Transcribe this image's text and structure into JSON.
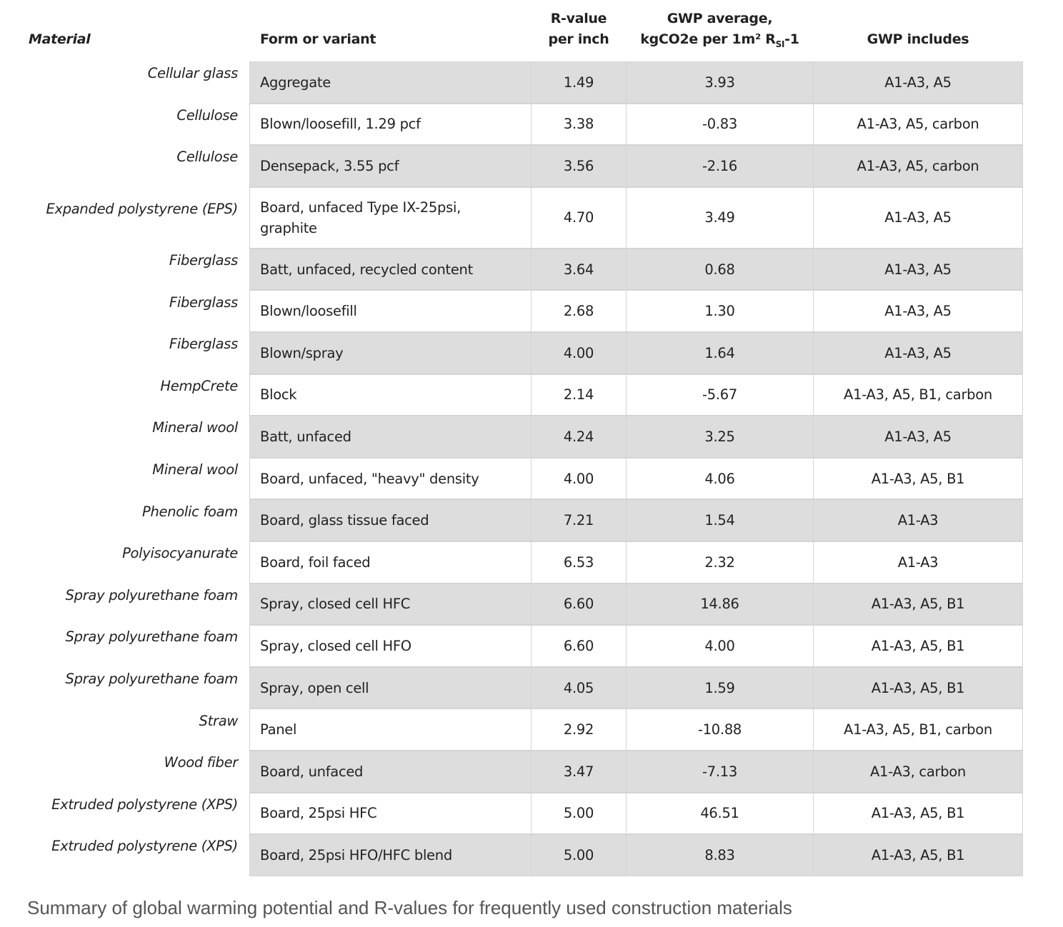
{
  "table": {
    "headers": {
      "material": "Material",
      "form": "Form or variant",
      "rvalue": [
        "R-value",
        "per inch"
      ],
      "gwp": [
        "GWP average,",
        "kgCO2e per 1m² R",
        "SI",
        "-1"
      ],
      "includes": "GWP includes"
    },
    "rows": [
      [
        "Cellular glass",
        "Aggregate",
        "1.49",
        "3.93",
        "A1-A3, A5"
      ],
      [
        "Cellulose",
        "Blown/loosefill, 1.29 pcf",
        "3.38",
        "-0.83",
        "A1-A3, A5, carbon"
      ],
      [
        "Cellulose",
        "Densepack, 3.55 pcf",
        "3.56",
        "-2.16",
        "A1-A3, A5, carbon"
      ],
      [
        "Expanded polystyrene (EPS)",
        "Board, unfaced Type IX-25psi, graphite",
        "4.70",
        "3.49",
        "A1-A3, A5"
      ],
      [
        "Fiberglass",
        "Batt, unfaced, recycled content",
        "3.64",
        "0.68",
        "A1-A3, A5"
      ],
      [
        "Fiberglass",
        "Blown/loosefill",
        "2.68",
        "1.30",
        "A1-A3, A5"
      ],
      [
        "Fiberglass",
        "Blown/spray",
        "4.00",
        "1.64",
        "A1-A3, A5"
      ],
      [
        "HempCrete",
        "Block",
        "2.14",
        "-5.67",
        "A1-A3, A5, B1, carbon"
      ],
      [
        "Mineral wool",
        "Batt, unfaced",
        "4.24",
        "3.25",
        "A1-A3, A5"
      ],
      [
        "Mineral wool",
        "Board, unfaced, \"heavy\" density",
        "4.00",
        "4.06",
        "A1-A3, A5, B1"
      ],
      [
        "Phenolic foam",
        "Board, glass tissue faced",
        "7.21",
        "1.54",
        "A1-A3"
      ],
      [
        "Polyisocyanurate",
        "Board, foil faced",
        "6.53",
        "2.32",
        "A1-A3"
      ],
      [
        "Spray polyurethane foam",
        "Spray, closed cell HFC",
        "6.60",
        "14.86",
        "A1-A3, A5, B1"
      ],
      [
        "Spray polyurethane foam",
        "Spray, closed cell HFO",
        "6.60",
        "4.00",
        "A1-A3, A5, B1"
      ],
      [
        "Spray polyurethane foam",
        "Spray, open cell",
        "4.05",
        "1.59",
        "A1-A3, A5, B1"
      ],
      [
        "Straw",
        "Panel",
        "2.92",
        "-10.88",
        "A1-A3, A5, B1, carbon"
      ],
      [
        "Wood fiber",
        "Board, unfaced",
        "3.47",
        "-7.13",
        "A1-A3, carbon"
      ],
      [
        "Extruded polystyrene (XPS)",
        "Board, 25psi HFC",
        "5.00",
        "46.51",
        "A1-A3, A5, B1"
      ],
      [
        "Extruded polystyrene (XPS)",
        "Board, 25psi HFO/HFC blend",
        "5.00",
        "8.83",
        "A1-A3, A5, B1"
      ]
    ]
  },
  "caption": "Summary of global warming potential and R-values for frequently used construction materials",
  "colors": {
    "row_alt": "#dddddd",
    "border": "#d4d4d4",
    "caption": "#555555"
  }
}
